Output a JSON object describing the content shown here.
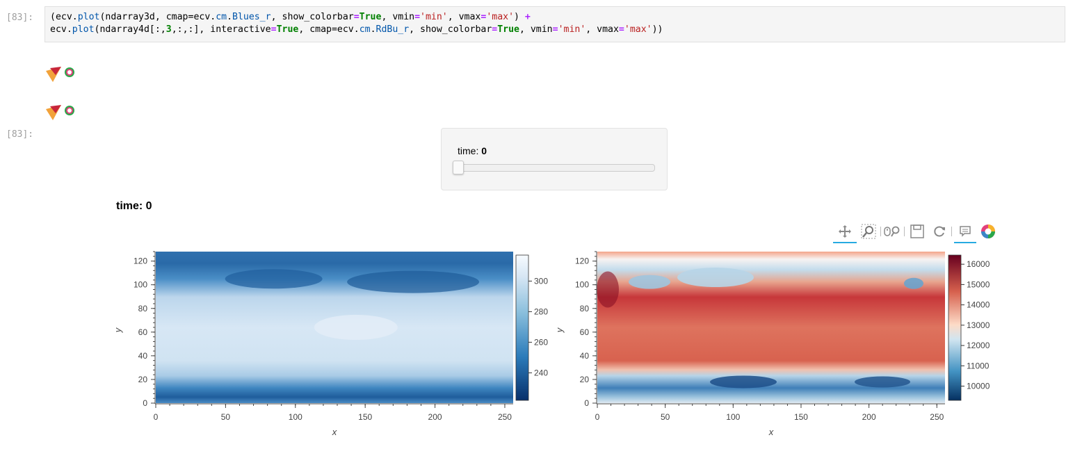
{
  "cell": {
    "in_prompt": "[83]:",
    "out_prompt": "[83]:",
    "code_line1": [
      {
        "t": "(ecv.",
        "c": ""
      },
      {
        "t": "plot",
        "c": "at"
      },
      {
        "t": "(ndarray3d, cmap=ecv.",
        "c": ""
      },
      {
        "t": "cm",
        "c": "at"
      },
      {
        "t": ".",
        "c": ""
      },
      {
        "t": "Blues_r",
        "c": "at"
      },
      {
        "t": ", show_colorbar",
        "c": ""
      },
      {
        "t": "=",
        "c": "op"
      },
      {
        "t": "True",
        "c": "kw"
      },
      {
        "t": ", vmin",
        "c": ""
      },
      {
        "t": "=",
        "c": "op"
      },
      {
        "t": "'min'",
        "c": "st"
      },
      {
        "t": ", vmax",
        "c": ""
      },
      {
        "t": "=",
        "c": "op"
      },
      {
        "t": "'max'",
        "c": "st"
      },
      {
        "t": ") ",
        "c": ""
      },
      {
        "t": "+",
        "c": "op"
      }
    ],
    "code_line2": [
      {
        "t": "ecv.",
        "c": ""
      },
      {
        "t": "plot",
        "c": "at"
      },
      {
        "t": "(ndarray4d[:,",
        "c": ""
      },
      {
        "t": "3",
        "c": "kw"
      },
      {
        "t": ",:,:], interactive",
        "c": ""
      },
      {
        "t": "=",
        "c": "op"
      },
      {
        "t": "True",
        "c": "kw"
      },
      {
        "t": ", cmap=ecv.",
        "c": ""
      },
      {
        "t": "cm",
        "c": "at"
      },
      {
        "t": ".",
        "c": ""
      },
      {
        "t": "RdBu_r",
        "c": "at"
      },
      {
        "t": ", show_colorbar",
        "c": ""
      },
      {
        "t": "=",
        "c": "op"
      },
      {
        "t": "True",
        "c": "kw"
      },
      {
        "t": ", vmin",
        "c": ""
      },
      {
        "t": "=",
        "c": "op"
      },
      {
        "t": "'min'",
        "c": "st"
      },
      {
        "t": ", vmax",
        "c": ""
      },
      {
        "t": "=",
        "c": "op"
      },
      {
        "t": "'max'",
        "c": "st"
      },
      {
        "t": "))",
        "c": ""
      }
    ]
  },
  "widget": {
    "label": "time:",
    "value": "0",
    "slider_fraction": 0
  },
  "plot_title": "time: 0",
  "toolbar": {
    "icons": [
      "pan-icon",
      "box-zoom-icon",
      "wheel-zoom-icon",
      "save-icon",
      "reset-icon",
      "hover-icon",
      "bokeh-logo-icon"
    ],
    "accent": "#26aae1"
  },
  "chart_data": [
    {
      "type": "heatmap",
      "xlabel": "x",
      "ylabel": "y",
      "xlim": [
        0,
        256
      ],
      "ylim": [
        0,
        128
      ],
      "x_ticks": [
        0,
        50,
        100,
        150,
        200,
        250
      ],
      "y_ticks": [
        0,
        20,
        40,
        60,
        80,
        100,
        120
      ],
      "colormap": "Blues_r",
      "colorbar_ticks": [
        240,
        260,
        280,
        300
      ],
      "colorbar_range": [
        222,
        317
      ]
    },
    {
      "type": "heatmap",
      "xlabel": "x",
      "ylabel": "y",
      "xlim": [
        0,
        256
      ],
      "ylim": [
        0,
        128
      ],
      "x_ticks": [
        0,
        50,
        100,
        150,
        200,
        250
      ],
      "y_ticks": [
        0,
        20,
        40,
        60,
        80,
        100,
        120
      ],
      "colormap": "RdBu_r",
      "colorbar_ticks": [
        10000,
        11000,
        12000,
        13000,
        14000,
        15000,
        16000
      ],
      "colorbar_range": [
        9300,
        16450
      ]
    }
  ]
}
